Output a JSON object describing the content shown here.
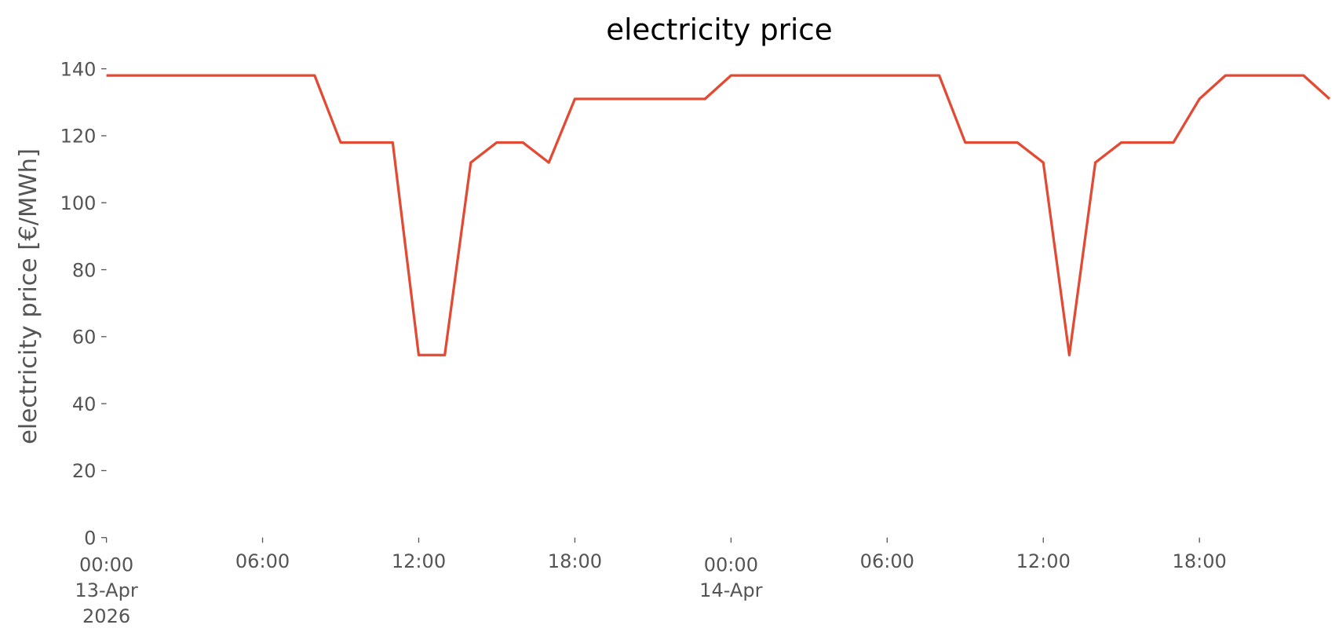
{
  "chart_data": {
    "type": "line",
    "title": "electricity price",
    "y_label": "electricity price [€/MWh]",
    "x": [
      "2026-04-13T00:00",
      "2026-04-13T01:00",
      "2026-04-13T02:00",
      "2026-04-13T03:00",
      "2026-04-13T04:00",
      "2026-04-13T05:00",
      "2026-04-13T06:00",
      "2026-04-13T07:00",
      "2026-04-13T08:00",
      "2026-04-13T09:00",
      "2026-04-13T10:00",
      "2026-04-13T11:00",
      "2026-04-13T12:00",
      "2026-04-13T13:00",
      "2026-04-13T14:00",
      "2026-04-13T15:00",
      "2026-04-13T16:00",
      "2026-04-13T17:00",
      "2026-04-13T18:00",
      "2026-04-13T19:00",
      "2026-04-13T20:00",
      "2026-04-13T21:00",
      "2026-04-13T22:00",
      "2026-04-13T23:00",
      "2026-04-14T00:00",
      "2026-04-14T01:00",
      "2026-04-14T02:00",
      "2026-04-14T03:00",
      "2026-04-14T04:00",
      "2026-04-14T05:00",
      "2026-04-14T06:00",
      "2026-04-14T07:00",
      "2026-04-14T08:00",
      "2026-04-14T09:00",
      "2026-04-14T10:00",
      "2026-04-14T11:00",
      "2026-04-14T12:00",
      "2026-04-14T13:00",
      "2026-04-14T14:00",
      "2026-04-14T15:00",
      "2026-04-14T16:00",
      "2026-04-14T17:00",
      "2026-04-14T18:00",
      "2026-04-14T19:00",
      "2026-04-14T20:00",
      "2026-04-14T21:00",
      "2026-04-14T22:00",
      "2026-04-14T23:00"
    ],
    "series": [
      {
        "name": "electricity price",
        "color": "#e24a33",
        "values": [
          138,
          138,
          138,
          138,
          138,
          138,
          138,
          138,
          138,
          118,
          118,
          118,
          54.5,
          54.5,
          112,
          118,
          118,
          112,
          131,
          131,
          131,
          131,
          131,
          131,
          138,
          138,
          138,
          138,
          138,
          138,
          138,
          138,
          138,
          118,
          118,
          118,
          112,
          54.5,
          112,
          118,
          118,
          118,
          131,
          138,
          138,
          138,
          138,
          131
        ]
      }
    ],
    "xlim": [
      "2026-04-13T00:00",
      "2026-04-14T23:00"
    ],
    "xticks": [
      {
        "value": "2026-04-13T00:00",
        "label": "00:00\n13-Apr\n2026"
      },
      {
        "value": "2026-04-13T06:00",
        "label": "06:00"
      },
      {
        "value": "2026-04-13T12:00",
        "label": "12:00"
      },
      {
        "value": "2026-04-13T18:00",
        "label": "18:00"
      },
      {
        "value": "2026-04-14T00:00",
        "label": "00:00\n14-Apr"
      },
      {
        "value": "2026-04-14T06:00",
        "label": "06:00"
      },
      {
        "value": "2026-04-14T12:00",
        "label": "12:00"
      },
      {
        "value": "2026-04-14T18:00",
        "label": "18:00"
      }
    ],
    "ylim": [
      0,
      140
    ],
    "yticks": [
      0,
      20,
      40,
      60,
      80,
      100,
      120,
      140
    ],
    "grid": false
  }
}
